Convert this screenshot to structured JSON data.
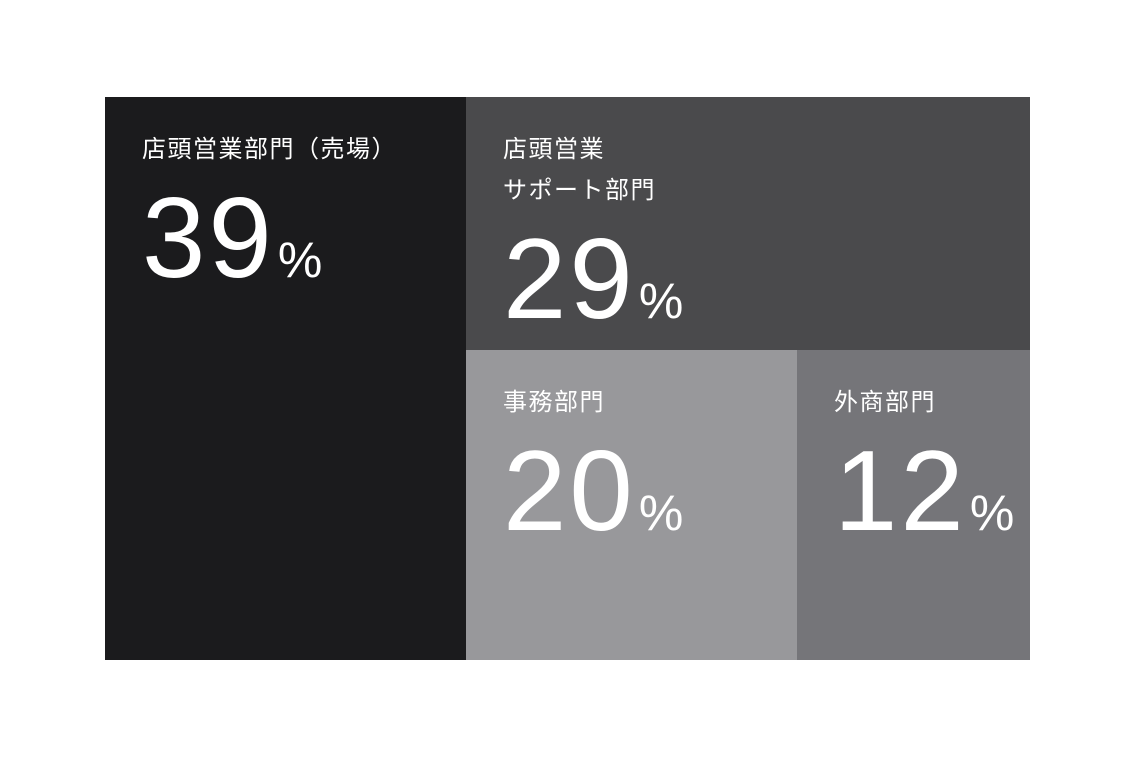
{
  "chart_data": {
    "type": "treemap",
    "unit": "%",
    "layout": "squarified, white page background, white text on gray-scale tiles",
    "items": [
      {
        "label": "店頭営業部門（売場）",
        "value": 39,
        "unit": "%",
        "color": "#1b1b1d"
      },
      {
        "label": "店頭営業\nサポート部門",
        "value": 29,
        "unit": "%",
        "color": "#4a4a4c"
      },
      {
        "label": "事務部門",
        "value": 20,
        "unit": "%",
        "color": "#98989b"
      },
      {
        "label": "外商部門",
        "value": 12,
        "unit": "%",
        "color": "#757579"
      }
    ]
  }
}
